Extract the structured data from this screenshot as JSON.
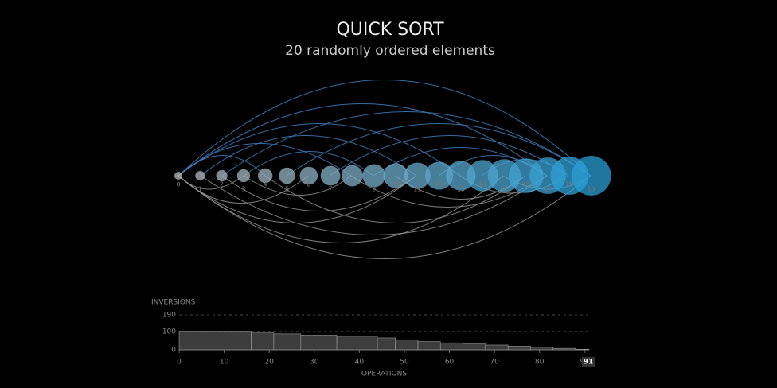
{
  "chart_data": [
    {
      "type": "bubble-row",
      "title": "QUICK SORT",
      "subtitle": "20 randomly ordered elements",
      "values": [
        0,
        1,
        2,
        3,
        4,
        5,
        6,
        7,
        8,
        9,
        10,
        11,
        12,
        13,
        14,
        15,
        16,
        17,
        18,
        19
      ],
      "color_start": "#bbbbbb",
      "color_end": "#2a9fd6"
    },
    {
      "type": "step",
      "ylabel": "INVERSIONS",
      "xlabel": "OPERATIONS",
      "x": [
        0,
        16,
        21,
        27,
        35,
        44,
        48,
        53,
        58,
        63,
        68,
        73,
        78,
        83,
        88,
        91
      ],
      "values": [
        101,
        95,
        87,
        80,
        74,
        65,
        55,
        45,
        38,
        32,
        26,
        20,
        14,
        8,
        3,
        0
      ],
      "xlim": [
        0,
        91
      ],
      "ylim": [
        0,
        190
      ],
      "xticks": [
        0,
        10,
        20,
        30,
        40,
        50,
        60,
        70,
        80,
        90
      ],
      "yticks": [
        0,
        100,
        190
      ],
      "marker": 91,
      "color": "#666666"
    }
  ]
}
